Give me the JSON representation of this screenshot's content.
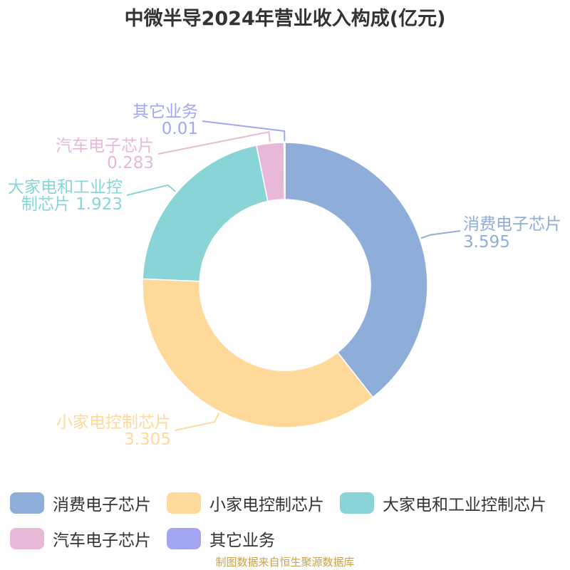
{
  "chart_data": {
    "type": "pie",
    "title": "中微半导2024年营业收入构成(亿元)",
    "donut": true,
    "legend_position": "bottom",
    "series": [
      {
        "name": "消费电子芯片",
        "value": 3.595,
        "color": "#8eadd9"
      },
      {
        "name": "小家电控制芯片",
        "value": 3.305,
        "color": "#ffd99a"
      },
      {
        "name": "大家电和工业控制芯片",
        "value": 1.923,
        "color": "#88d4d6"
      },
      {
        "name": "汽车电子芯片",
        "value": 0.283,
        "color": "#e8b8d8"
      },
      {
        "name": "其它业务",
        "value": 0.01,
        "color": "#a3a6f2"
      }
    ],
    "labels": [
      {
        "lines": [
          "消费电子芯片",
          "3.595"
        ]
      },
      {
        "lines": [
          "小家电控制芯片",
          "3.305"
        ]
      },
      {
        "lines": [
          "大家电和工业控",
          "制芯片 1.923"
        ]
      },
      {
        "lines": [
          "汽车电子芯片",
          "0.283"
        ]
      },
      {
        "lines": [
          "其它业务",
          "0.01"
        ]
      }
    ]
  },
  "source": "制图数据来自恒生聚源数据库"
}
